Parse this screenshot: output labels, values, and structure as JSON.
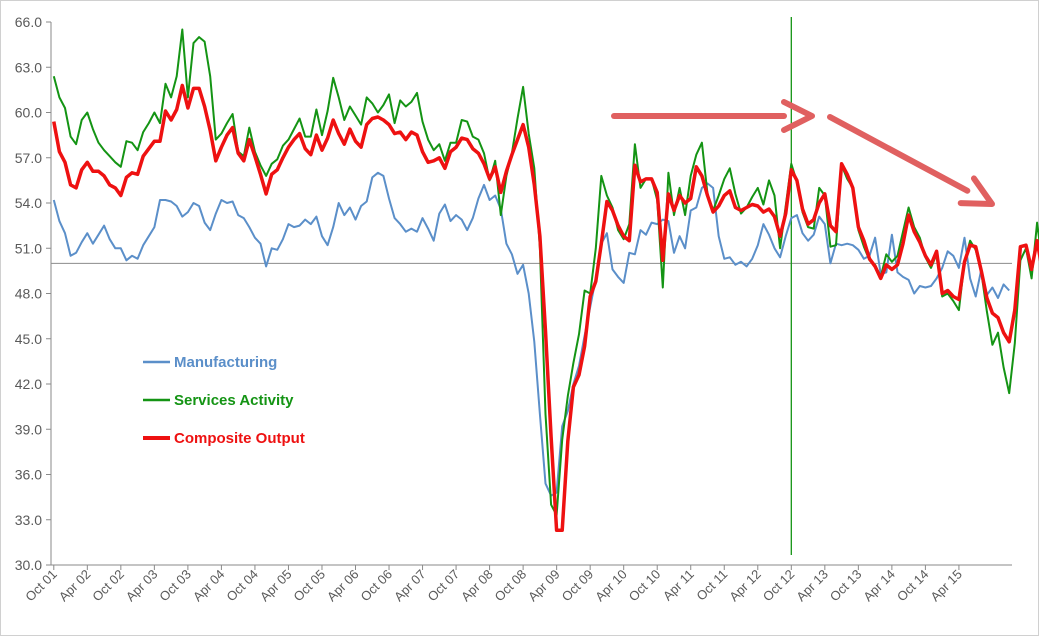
{
  "chart_data": {
    "type": "line",
    "title": "",
    "xlabel": "",
    "ylabel": "",
    "ylim": [
      30,
      66
    ],
    "yticks": [
      "30.0",
      "33.0",
      "36.0",
      "39.0",
      "42.0",
      "45.0",
      "48.0",
      "51.0",
      "54.0",
      "57.0",
      "60.0",
      "63.0",
      "66.0"
    ],
    "xticks": [
      "Oct 01",
      "Apr 02",
      "Oct 02",
      "Apr 03",
      "Oct 03",
      "Apr 04",
      "Oct 04",
      "Apr 05",
      "Oct 05",
      "Apr 06",
      "Oct 06",
      "Apr 07",
      "Oct 07",
      "Apr 08",
      "Oct 08",
      "Apr 09",
      "Oct 09",
      "Apr 10",
      "Oct 10",
      "Apr 11",
      "Oct 11",
      "Apr 12",
      "Oct 12",
      "Apr 13",
      "Oct 13",
      "Apr 14",
      "Oct 14",
      "Apr 15"
    ],
    "start_period": "Oct 01",
    "reference_line_y": 50,
    "vertical_marker": "Oct 12",
    "legend_position": "left-middle",
    "grid": false,
    "series": [
      {
        "name": "Manufacturing",
        "color": "#5b8fc9",
        "values": [
          54.2,
          52.8,
          52.0,
          50.5,
          50.7,
          51.4,
          52.0,
          51.3,
          51.9,
          52.5,
          51.6,
          51.0,
          51.0,
          50.2,
          50.5,
          50.3,
          51.2,
          51.8,
          52.4,
          54.2,
          54.2,
          54.1,
          53.8,
          53.1,
          53.4,
          54.0,
          53.8,
          52.7,
          52.2,
          53.3,
          54.2,
          54.0,
          54.1,
          53.2,
          53.0,
          52.4,
          51.7,
          51.3,
          49.8,
          51.0,
          50.9,
          51.6,
          52.6,
          52.4,
          52.5,
          52.9,
          52.6,
          53.1,
          51.8,
          51.2,
          52.4,
          54.0,
          53.2,
          53.7,
          52.9,
          53.8,
          54.1,
          55.7,
          56.0,
          55.8,
          54.3,
          53.0,
          52.6,
          52.1,
          52.3,
          52.1,
          53.0,
          52.3,
          51.5,
          53.3,
          53.9,
          52.8,
          53.2,
          52.9,
          52.2,
          53.0,
          54.3,
          55.2,
          54.2,
          54.5,
          53.6,
          51.3,
          50.6,
          49.3,
          49.9,
          48.0,
          44.8,
          40.0,
          35.4,
          34.6,
          34.8,
          39.2,
          40.2,
          42.0,
          43.2,
          45.2,
          47.1,
          49.0,
          51.3,
          52.0,
          49.6,
          49.1,
          48.7,
          50.7,
          50.6,
          52.2,
          51.9,
          52.7,
          52.6,
          52.9,
          52.8,
          50.7,
          51.8,
          51.0,
          53.5,
          53.7,
          55.0,
          55.3,
          55.0,
          51.8,
          50.3,
          50.4,
          49.9,
          50.1,
          49.8,
          50.3,
          51.2,
          52.6,
          51.9,
          51.0,
          50.4,
          51.8,
          53.0,
          53.2,
          52.0,
          51.5,
          51.9,
          53.1,
          52.6,
          50.0,
          51.3,
          51.2,
          51.3,
          51.2,
          50.9,
          50.3,
          50.5,
          51.7,
          49.3,
          49.4,
          51.9,
          49.4,
          49.1,
          48.9,
          48.0,
          48.5,
          48.4,
          48.5,
          49.0,
          49.7,
          50.8,
          50.5,
          49.7,
          51.7,
          49.0,
          47.8,
          49.6,
          47.9,
          48.4,
          47.7,
          48.6,
          48.2
        ]
      },
      {
        "name": "Services Activity",
        "color": "#149414",
        "values": [
          62.4,
          61.0,
          60.3,
          58.4,
          57.9,
          59.5,
          60.0,
          58.9,
          58.0,
          57.5,
          57.1,
          56.7,
          56.4,
          58.1,
          58.0,
          57.5,
          58.7,
          59.3,
          60.0,
          59.3,
          61.9,
          61.0,
          62.4,
          65.5,
          61.0,
          64.6,
          65.0,
          64.7,
          62.4,
          58.2,
          58.6,
          59.3,
          59.9,
          57.4,
          57.1,
          59.0,
          57.4,
          56.5,
          55.8,
          56.6,
          56.9,
          57.8,
          58.2,
          58.9,
          59.6,
          58.4,
          58.4,
          60.2,
          58.5,
          60.1,
          62.3,
          61.0,
          59.5,
          60.4,
          59.8,
          59.2,
          61.0,
          60.6,
          60.0,
          60.5,
          61.2,
          59.3,
          60.8,
          60.4,
          60.7,
          61.3,
          59.4,
          58.2,
          57.5,
          57.9,
          56.8,
          58.0,
          58.0,
          59.5,
          59.4,
          58.4,
          58.2,
          57.3,
          55.5,
          56.8,
          53.2,
          55.8,
          57.3,
          59.6,
          61.7,
          58.6,
          56.3,
          51.0,
          40.0,
          34.0,
          33.3,
          38.3,
          41.2,
          43.4,
          45.3,
          48.2,
          48.0,
          51.0,
          55.8,
          54.5,
          53.7,
          52.2,
          51.6,
          52.6,
          57.9,
          55.0,
          55.6,
          55.6,
          54.2,
          48.4,
          56.0,
          53.2,
          55.0,
          53.2,
          55.8,
          57.2,
          58.0,
          54.6,
          53.5,
          54.5,
          55.6,
          56.3,
          54.6,
          53.3,
          53.7,
          54.4,
          55.0,
          53.9,
          55.5,
          54.5,
          51.0,
          53.8,
          56.6,
          55.4,
          53.4,
          52.4,
          52.3,
          55.0,
          54.5,
          51.1,
          51.2,
          56.5,
          55.6,
          55.0,
          52.2,
          51.1,
          50.2,
          49.9,
          49.1,
          50.6,
          50.1,
          50.5,
          52.1,
          53.7,
          52.4,
          51.7,
          50.4,
          49.7,
          50.6,
          47.8,
          48.0,
          47.5,
          46.9,
          50.1,
          51.5,
          50.9,
          49.4,
          46.8,
          44.6,
          45.4,
          43.1,
          41.4,
          44.7,
          50.2,
          51.0,
          49.0,
          52.7,
          49.8,
          51.5
        ]
      },
      {
        "name": "Composite Output",
        "color": "#ee1111",
        "values": [
          59.4,
          57.4,
          56.7,
          55.2,
          55.0,
          56.2,
          56.7,
          56.1,
          56.1,
          55.8,
          55.2,
          55.0,
          54.5,
          55.7,
          56.0,
          55.9,
          57.1,
          57.6,
          58.1,
          58.1,
          60.1,
          59.5,
          60.2,
          61.8,
          60.3,
          61.6,
          61.6,
          60.4,
          58.8,
          56.8,
          57.7,
          58.5,
          59.0,
          57.3,
          56.8,
          58.2,
          57.1,
          55.9,
          54.6,
          55.9,
          56.2,
          57.0,
          57.7,
          58.2,
          58.6,
          57.6,
          57.2,
          58.5,
          57.5,
          58.3,
          59.5,
          58.6,
          57.9,
          58.9,
          58.1,
          57.7,
          59.2,
          59.6,
          59.7,
          59.5,
          59.2,
          58.6,
          58.7,
          58.2,
          58.7,
          58.5,
          57.4,
          56.7,
          56.8,
          57.0,
          56.3,
          57.4,
          57.7,
          58.3,
          58.2,
          57.6,
          57.3,
          56.6,
          55.6,
          56.4,
          54.7,
          56.1,
          57.2,
          58.2,
          59.2,
          57.7,
          55.2,
          51.8,
          45.5,
          38.5,
          32.3,
          32.3,
          38.2,
          41.8,
          42.6,
          44.5,
          47.8,
          48.8,
          51.3,
          54.1,
          53.5,
          52.5,
          51.8,
          51.5,
          56.5,
          55.4,
          55.6,
          55.6,
          54.7,
          50.2,
          54.6,
          53.5,
          54.5,
          54.0,
          54.3,
          56.4,
          55.8,
          54.5,
          53.4,
          53.8,
          54.5,
          54.8,
          53.7,
          53.5,
          53.7,
          53.9,
          53.8,
          53.4,
          53.6,
          53.1,
          51.8,
          53.3,
          56.2,
          55.5,
          53.6,
          52.6,
          52.9,
          54.0,
          54.6,
          52.5,
          52.1,
          56.6,
          55.9,
          55.0,
          52.4,
          51.5,
          50.3,
          49.8,
          49.0,
          49.9,
          49.6,
          49.9,
          51.3,
          53.2,
          52.1,
          51.4,
          50.5,
          49.9,
          50.8,
          48.0,
          48.2,
          47.8,
          47.6,
          50.1,
          51.2,
          51.1,
          49.5,
          47.7,
          46.7,
          46.4,
          45.4,
          44.8,
          46.9,
          51.1,
          51.2,
          49.6,
          51.5,
          49.4,
          50.7
        ]
      }
    ]
  },
  "annotations": {
    "arrow_color": "#e06060",
    "arrow_flat_label": "",
    "arrow_down_label": ""
  },
  "legend": {
    "manufacturing": "Manufacturing",
    "services": "Services Activity",
    "composite": "Composite Output"
  }
}
